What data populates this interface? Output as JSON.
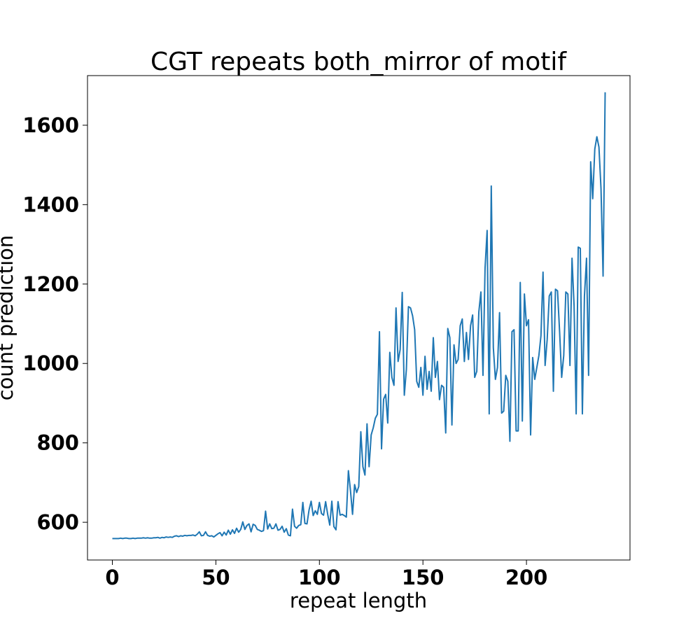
{
  "chart_data": {
    "type": "line",
    "title": "CGT repeats both_mirror of motif",
    "xlabel": "repeat length",
    "ylabel": "count prediction",
    "xlim": [
      -12,
      250
    ],
    "ylim": [
      505,
      1725
    ],
    "xticks": [
      0,
      50,
      100,
      150,
      200
    ],
    "yticks": [
      600,
      800,
      1000,
      1200,
      1400,
      1600
    ],
    "xtick_labels": [
      "0",
      "50",
      "100",
      "150",
      "200"
    ],
    "ytick_labels": [
      "600",
      "800",
      "1000",
      "1200",
      "1400",
      "1600"
    ],
    "grid": false,
    "series": [
      {
        "name": "",
        "color": "#1f77b4",
        "x_start": 0,
        "x_step": 1,
        "values": [
          559,
          559,
          559,
          559,
          560,
          559,
          560,
          560,
          559,
          559,
          560,
          559,
          560,
          560,
          560,
          561,
          560,
          561,
          560,
          560,
          561,
          561,
          562,
          560,
          562,
          561,
          563,
          562,
          563,
          562,
          565,
          566,
          564,
          566,
          565,
          567,
          566,
          567,
          567,
          568,
          566,
          570,
          576,
          566,
          567,
          576,
          567,
          565,
          566,
          563,
          567,
          571,
          574,
          566,
          575,
          568,
          580,
          570,
          581,
          572,
          585,
          575,
          582,
          601,
          582,
          592,
          596,
          576,
          595,
          592,
          582,
          580,
          577,
          579,
          628,
          583,
          596,
          584,
          585,
          596,
          580,
          582,
          590,
          575,
          584,
          568,
          566,
          633,
          590,
          585,
          592,
          594,
          650,
          597,
          596,
          631,
          653,
          617,
          629,
          620,
          650,
          622,
          618,
          652,
          620,
          593,
          653,
          589,
          581,
          652,
          618,
          620,
          617,
          613,
          730,
          680,
          620,
          695,
          675,
          690,
          828,
          740,
          719,
          848,
          740,
          820,
          838,
          862,
          872,
          1080,
          785,
          910,
          922,
          850,
          1028,
          965,
          945,
          1140,
          1005,
          1035,
          1179,
          920,
          985,
          1143,
          1140,
          1120,
          1085,
          955,
          940,
          990,
          920,
          1018,
          935,
          980,
          930,
          1065,
          965,
          1005,
          909,
          945,
          940,
          825,
          1088,
          1065,
          845,
          1047,
          1000,
          1010,
          1095,
          1112,
          1005,
          1078,
          1010,
          1095,
          1122,
          965,
          980,
          1130,
          1180,
          970,
          1240,
          1335,
          873,
          1447,
          1040,
          960,
          990,
          1128,
          875,
          880,
          970,
          955,
          804,
          1080,
          1085,
          830,
          830,
          1204,
          855,
          1175,
          1095,
          1110,
          820,
          1015,
          960,
          990,
          1020,
          1070,
          1230,
          995,
          1060,
          1170,
          1180,
          930,
          1187,
          1183,
          1080,
          965,
          1020,
          1180,
          1175,
          995,
          1265,
          1145,
          873,
          1293,
          1290,
          873,
          1170,
          1265,
          970,
          1508,
          1415,
          1540,
          1571,
          1545,
          1440,
          1220,
          1683
        ]
      }
    ]
  }
}
